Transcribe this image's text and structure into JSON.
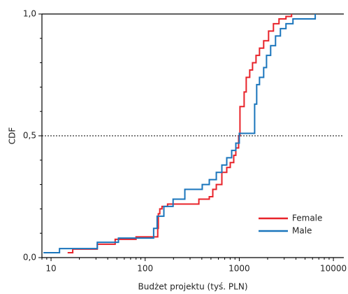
{
  "chart_data": {
    "type": "step",
    "x_label": "Budżet projektu (tyś. PLN)",
    "y_label": "CDF",
    "xlim": [
      8,
      12900
    ],
    "xscale": "log",
    "xticks": [
      10,
      100,
      1000,
      10000
    ],
    "ylim": [
      0,
      1
    ],
    "yticks": [
      {
        "value": 0,
        "label": "0,0"
      },
      {
        "value": 0.5,
        "label": "0,5"
      },
      {
        "value": 1,
        "label": "1,0"
      }
    ],
    "reference_line": 0.5,
    "legend": "lower right",
    "series": [
      {
        "name": "Female",
        "color": "#e8232a",
        "x": [
          15,
          17,
          31,
          48,
          80,
          136,
          138,
          143,
          151,
          173,
          372,
          480,
          523,
          570,
          653,
          736,
          802,
          873,
          919,
          984,
          1017,
          1126,
          1185,
          1291,
          1383,
          1506,
          1640,
          1816,
          2047,
          2306,
          2643,
          3134,
          3594
        ],
        "values": [
          0.02,
          0.035,
          0.055,
          0.075,
          0.085,
          0.12,
          0.18,
          0.2,
          0.21,
          0.22,
          0.24,
          0.25,
          0.28,
          0.3,
          0.35,
          0.37,
          0.39,
          0.42,
          0.45,
          0.5,
          0.62,
          0.68,
          0.74,
          0.77,
          0.8,
          0.83,
          0.86,
          0.89,
          0.93,
          0.96,
          0.98,
          0.99,
          1.0
        ]
      },
      {
        "name": "Male",
        "color": "#1a75bc",
        "x": [
          8.3,
          12.3,
          31,
          52,
          123,
          134,
          158,
          198,
          264,
          404,
          480,
          570,
          653,
          736,
          830,
          919,
          1000,
          1456,
          1531,
          1640,
          1816,
          1947,
          2154,
          2427,
          2735,
          3134,
          3719,
          6412
        ],
        "values": [
          0.02,
          0.037,
          0.063,
          0.08,
          0.12,
          0.17,
          0.21,
          0.24,
          0.28,
          0.3,
          0.32,
          0.35,
          0.38,
          0.41,
          0.44,
          0.47,
          0.51,
          0.63,
          0.71,
          0.74,
          0.78,
          0.83,
          0.87,
          0.91,
          0.94,
          0.96,
          0.98,
          1.0
        ]
      }
    ]
  }
}
